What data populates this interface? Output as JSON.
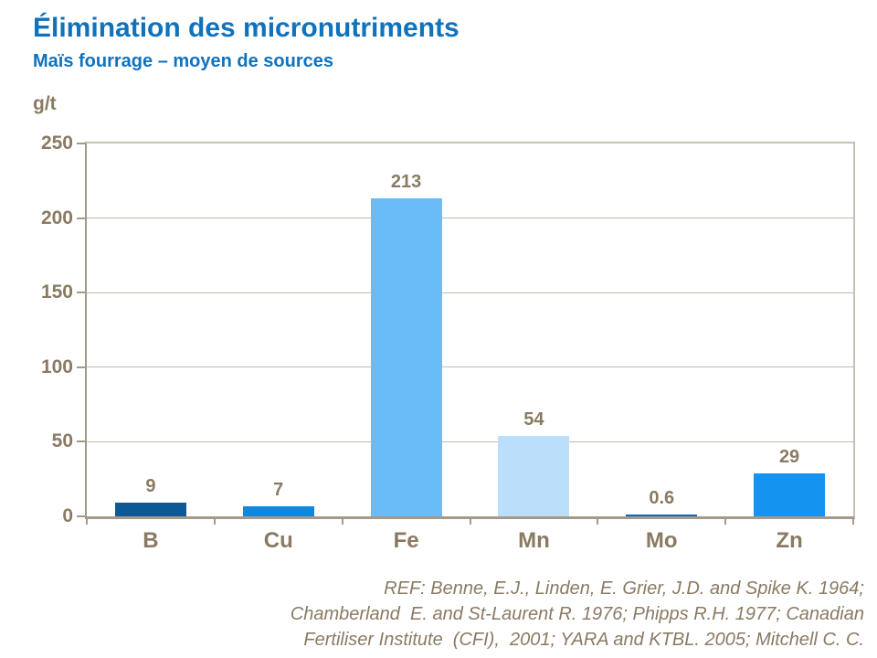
{
  "header": {
    "title": "Élimination des micronutriments",
    "subtitle": "Maïs fourrage – moyen de sources"
  },
  "chart_data": {
    "type": "bar",
    "title": "Élimination des micronutriments",
    "subtitle": "Maïs fourrage – moyen de sources",
    "unit_label": "g/t",
    "categories": [
      "B",
      "Cu",
      "Fe",
      "Mn",
      "Mo",
      "Zn"
    ],
    "values": [
      9,
      7,
      213,
      54,
      0.6,
      29
    ],
    "value_labels": [
      "9",
      "7",
      "213",
      "54",
      "0.6",
      "29"
    ],
    "bar_colors": [
      "#0D5996",
      "#0E88DE",
      "#69BCF8",
      "#BBDFFB",
      "#1268B4",
      "#1493F0"
    ],
    "xlabel": "",
    "ylabel": "g/t",
    "ylim": [
      0,
      250
    ],
    "yticks": [
      0,
      50,
      100,
      150,
      200,
      250
    ],
    "grid": true,
    "legend": "none"
  },
  "footer": {
    "lines": [
      "REF: Benne, E.J., Linden, E. Grier, J.D. and Spike K. 1964;",
      "Chamberland  E. and St-Laurent R. 1976; Phipps R.H. 1977; Canadian",
      "Fertiliser Institute  (CFI),  2001; YARA and KTBL. 2005; Mitchell C. C."
    ]
  },
  "colors": {
    "accent_blue": "#0F72BD",
    "label_brown": "#8A7A63",
    "axis_line": "#A39A8B",
    "gridline": "#C3BBAE"
  }
}
